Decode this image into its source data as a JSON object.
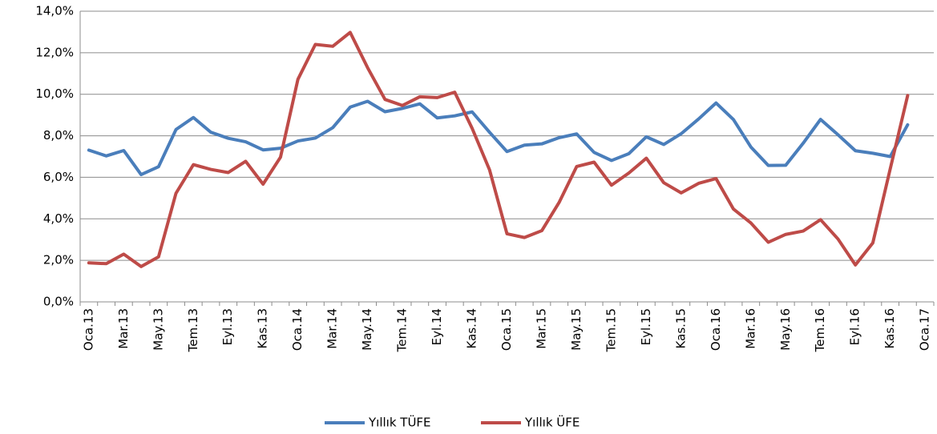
{
  "chart_data": {
    "type": "line",
    "categories": [
      "Oca.13",
      null,
      "Mar.13",
      null,
      "May.13",
      null,
      "Tem.13",
      null,
      "Eyl.13",
      null,
      "Kas.13",
      null,
      "Oca.14",
      null,
      "Mar.14",
      null,
      "May.14",
      null,
      "Tem.14",
      null,
      "Eyl.14",
      null,
      "Kas.14",
      null,
      "Oca.15",
      null,
      "Mar.15",
      null,
      "May.15",
      null,
      "Tem.15",
      null,
      "Eyl.15",
      null,
      "Kas.15",
      null,
      "Oca.16",
      null,
      "Mar.16",
      null,
      "May.16",
      null,
      "Tem.16",
      null,
      "Eyl.16",
      null,
      "Kas.16",
      null,
      "Oca.17"
    ],
    "series": [
      {
        "name": "Yıllık TÜFE",
        "color": "#4a7ebb",
        "values": [
          7.31,
          7.03,
          7.29,
          6.13,
          6.51,
          8.3,
          8.88,
          8.17,
          7.88,
          7.71,
          7.32,
          7.4,
          7.75,
          7.89,
          8.39,
          9.38,
          9.66,
          9.16,
          9.32,
          9.54,
          8.86,
          8.96,
          9.15,
          8.17,
          7.24,
          7.55,
          7.61,
          7.91,
          8.09,
          7.2,
          6.81,
          7.14,
          7.95,
          7.58,
          8.1,
          8.81,
          9.58,
          8.78,
          7.46,
          6.57,
          6.58,
          7.64,
          8.79,
          8.05,
          7.28,
          7.16,
          7.0,
          8.53,
          null
        ]
      },
      {
        "name": "Yıllık ÜFE",
        "color": "#be4b48",
        "values": [
          1.88,
          1.84,
          2.3,
          1.7,
          2.17,
          5.23,
          6.61,
          6.38,
          6.23,
          6.77,
          5.67,
          6.97,
          10.72,
          12.4,
          12.31,
          12.98,
          11.28,
          9.75,
          9.46,
          9.88,
          9.84,
          10.1,
          8.36,
          6.36,
          3.28,
          3.1,
          3.43,
          4.8,
          6.52,
          6.73,
          5.62,
          6.21,
          6.92,
          5.74,
          5.25,
          5.71,
          5.94,
          4.47,
          3.8,
          2.87,
          3.25,
          3.41,
          3.96,
          3.03,
          1.78,
          2.84,
          6.41,
          9.94,
          null
        ]
      }
    ],
    "ylim": [
      0,
      14
    ],
    "yticks": [
      {
        "value": 0,
        "label": "0,0%"
      },
      {
        "value": 2,
        "label": "2,0%"
      },
      {
        "value": 4,
        "label": "4,0%"
      },
      {
        "value": 6,
        "label": "6,0%"
      },
      {
        "value": 8,
        "label": "8,0%"
      },
      {
        "value": 10,
        "label": "10,0%"
      },
      {
        "value": 12,
        "label": "12,0%"
      },
      {
        "value": 14,
        "label": "14,0%"
      }
    ],
    "grid": true,
    "legend": "bottom"
  }
}
